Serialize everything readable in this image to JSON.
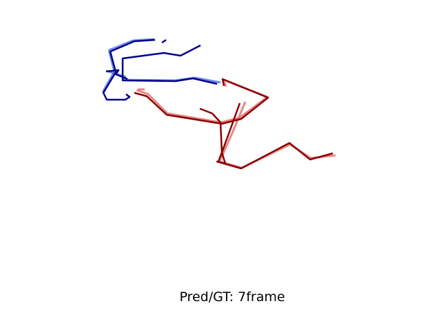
{
  "title": "Pred/GT: 7frame"
}
